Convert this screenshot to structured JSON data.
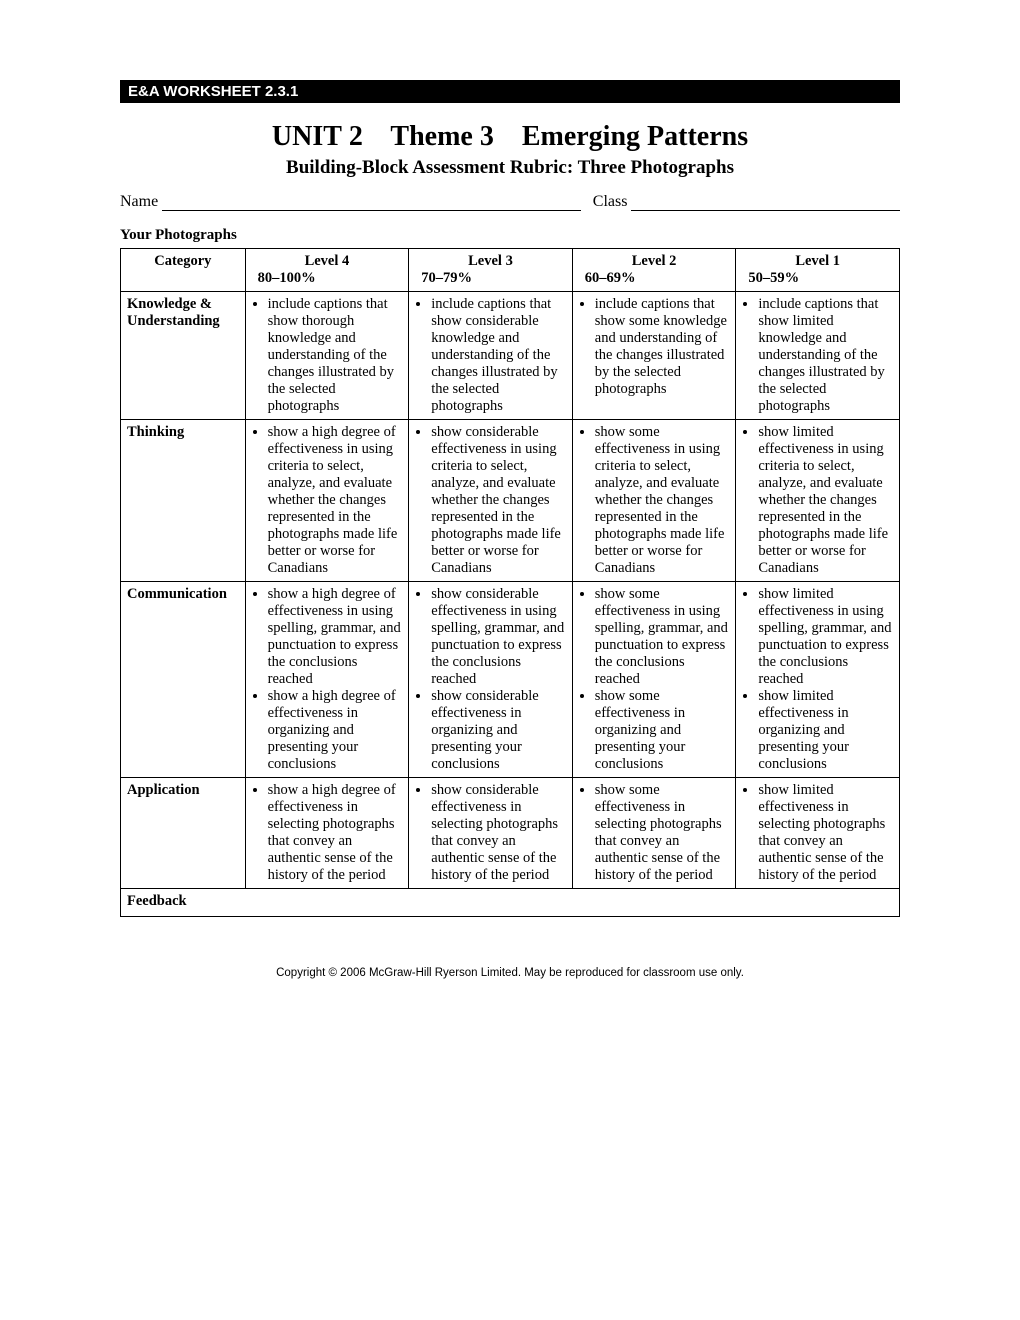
{
  "banner": "E&A WORKSHEET 2.3.1",
  "title": {
    "unit": "UNIT",
    "unit_num": "2",
    "theme": "Theme 3",
    "topic": "Emerging Patterns"
  },
  "subtitle": "Building-Block Assessment Rubric: Three Photographs",
  "fields": {
    "name_label": "Name",
    "class_label": "Class"
  },
  "section_label": "Your Photographs",
  "headers": {
    "category": "Category",
    "levels": [
      {
        "name": "Level 4",
        "pct": "80–100%"
      },
      {
        "name": "Level 3",
        "pct": "70–79%"
      },
      {
        "name": "Level 2",
        "pct": "60–69%"
      },
      {
        "name": "Level 1",
        "pct": "50–59%"
      }
    ]
  },
  "rows": [
    {
      "category": "Knowledge & Understanding",
      "cells": [
        [
          "include captions that show thorough knowledge and understanding of the changes illustrated by the selected photographs"
        ],
        [
          "include captions that show considerable knowledge and understanding of the changes illustrated by the selected photographs"
        ],
        [
          "include captions that show some knowledge and understanding of the changes illustrated by the selected photographs"
        ],
        [
          "include captions that show limited knowledge and understanding of the changes illustrated by the selected photographs"
        ]
      ]
    },
    {
      "category": "Thinking",
      "cells": [
        [
          "show a high degree of effectiveness in using criteria to select, analyze, and evaluate whether the changes represented in the photographs made life better or worse for Canadians"
        ],
        [
          "show considerable effectiveness in using criteria to select, analyze, and evaluate whether the changes represented in the photographs made life better or worse for Canadians"
        ],
        [
          "show some effectiveness in using criteria to select, analyze, and evaluate whether the changes represented in the photographs made life better or worse for Canadians"
        ],
        [
          "show limited effectiveness in using criteria to select, analyze, and evaluate whether the changes represented in the photographs made life better or worse for Canadians"
        ]
      ]
    },
    {
      "category": "Communication",
      "cells": [
        [
          "show a high degree of effectiveness in using spelling, grammar, and punctuation to express the conclusions reached",
          "show a high degree of effectiveness in organizing and presenting your conclusions"
        ],
        [
          "show considerable effectiveness in using spelling, grammar, and punctuation to express the conclusions reached",
          "show considerable effectiveness in organizing and presenting your conclusions"
        ],
        [
          "show some effectiveness in using spelling, grammar, and punctuation to express the conclusions reached",
          "show some effectiveness in organizing and presenting your conclusions"
        ],
        [
          "show limited effectiveness in using spelling, grammar, and punctuation to express the conclusions reached",
          "show limited effectiveness in organizing and presenting your conclusions"
        ]
      ]
    },
    {
      "category": "Application",
      "cells": [
        [
          "show a high degree of effectiveness in selecting photographs that convey an authentic sense of the history of the period"
        ],
        [
          "show considerable effectiveness in selecting photographs that convey an authentic sense of the history of the period"
        ],
        [
          "show some effectiveness in selecting photographs that convey an authentic sense of the history of the period"
        ],
        [
          "show limited effectiveness in selecting photographs that convey an authentic sense of the history of the period"
        ]
      ]
    }
  ],
  "feedback_label": "Feedback",
  "copyright": "Copyright © 2006 McGraw-Hill Ryerson Limited. May be reproduced for classroom use only."
}
